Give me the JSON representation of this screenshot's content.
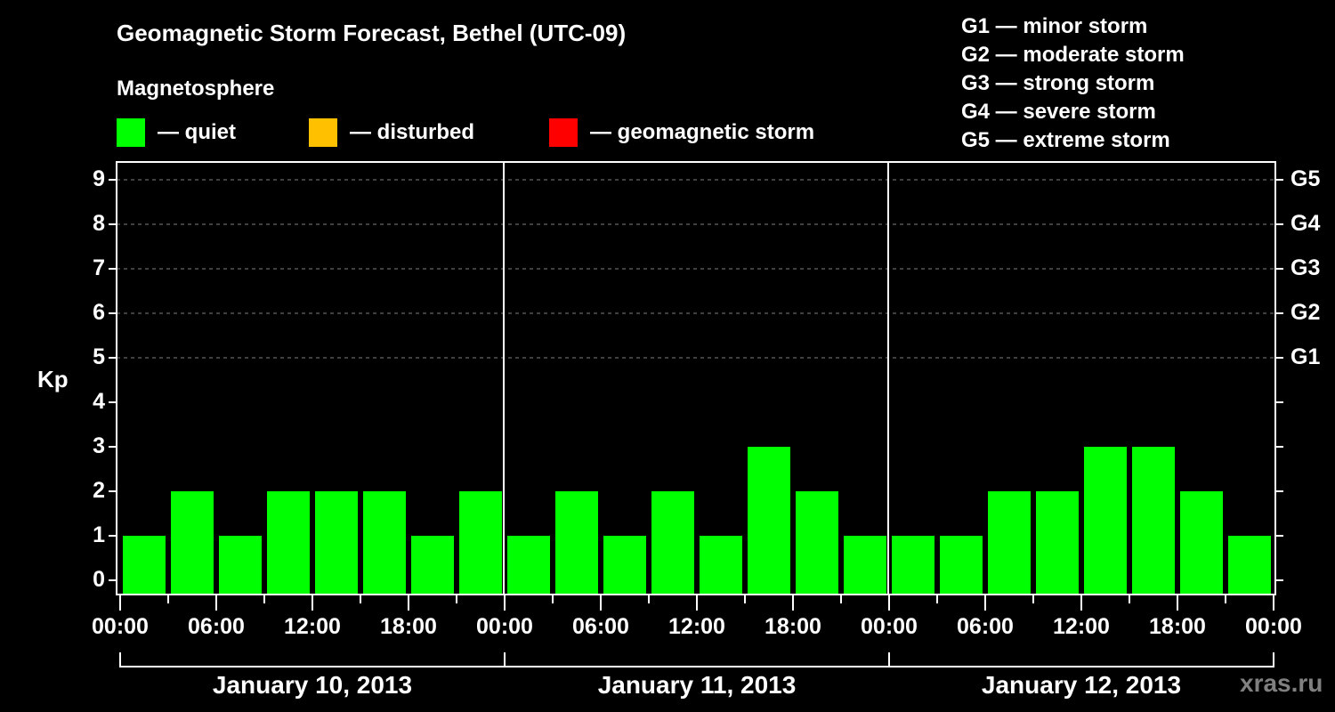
{
  "chart_data": {
    "type": "bar",
    "title": "Geomagnetic Storm Forecast, Bethel (UTC-09)",
    "subtitle": "Magnetosphere",
    "ylabel": "Kp",
    "xlabel": "",
    "ylim": [
      0,
      9
    ],
    "yticks": [
      "0",
      "1",
      "2",
      "3",
      "4",
      "5",
      "6",
      "7",
      "8",
      "9"
    ],
    "right_ticks": [
      {
        "kp": 5,
        "label": "G1"
      },
      {
        "kp": 6,
        "label": "G2"
      },
      {
        "kp": 7,
        "label": "G3"
      },
      {
        "kp": 8,
        "label": "G4"
      },
      {
        "kp": 9,
        "label": "G5"
      }
    ],
    "grid": "dashed horizontal at Kp 5-9",
    "interval_hours": 3,
    "days": [
      {
        "label": "January 10, 2013",
        "values": [
          1,
          2,
          1,
          2,
          2,
          2,
          1,
          2
        ]
      },
      {
        "label": "January 11, 2013",
        "values": [
          1,
          2,
          1,
          2,
          1,
          3,
          2,
          1
        ]
      },
      {
        "label": "January 12, 2013",
        "values": [
          1,
          1,
          2,
          2,
          3,
          3,
          2,
          1
        ]
      }
    ],
    "categories": [
      "Jan 10 00:00",
      "Jan 10 03:00",
      "Jan 10 06:00",
      "Jan 10 09:00",
      "Jan 10 12:00",
      "Jan 10 15:00",
      "Jan 10 18:00",
      "Jan 10 21:00",
      "Jan 11 00:00",
      "Jan 11 03:00",
      "Jan 11 06:00",
      "Jan 11 09:00",
      "Jan 11 12:00",
      "Jan 11 15:00",
      "Jan 11 18:00",
      "Jan 11 21:00",
      "Jan 12 00:00",
      "Jan 12 03:00",
      "Jan 12 06:00",
      "Jan 12 09:00",
      "Jan 12 12:00",
      "Jan 12 15:00",
      "Jan 12 18:00",
      "Jan 12 21:00"
    ],
    "values": [
      1,
      2,
      1,
      2,
      2,
      2,
      1,
      2,
      1,
      2,
      1,
      2,
      1,
      3,
      2,
      1,
      1,
      1,
      2,
      2,
      3,
      3,
      2,
      1
    ],
    "xticks": [
      "00:00",
      "06:00",
      "12:00",
      "18:00",
      "00:00",
      "06:00",
      "12:00",
      "18:00",
      "00:00",
      "06:00",
      "12:00",
      "18:00",
      "00:00"
    ],
    "legend": [
      {
        "label": "— quiet",
        "color": "#00ff00"
      },
      {
        "label": "— disturbed",
        "color": "#ffc000"
      },
      {
        "label": "— geomagnetic storm",
        "color": "#ff0000"
      }
    ],
    "g_scale": [
      "G1 — minor storm",
      "G2 — moderate storm",
      "G3 — strong storm",
      "G4 — severe storm",
      "G5 — extreme storm"
    ],
    "legend_position": "top"
  },
  "colors": {
    "quiet": "#00ff00",
    "disturbed": "#ffc000",
    "storm": "#ff0000",
    "background": "#000000",
    "grid": "#808080"
  },
  "watermark": "xras.ru"
}
